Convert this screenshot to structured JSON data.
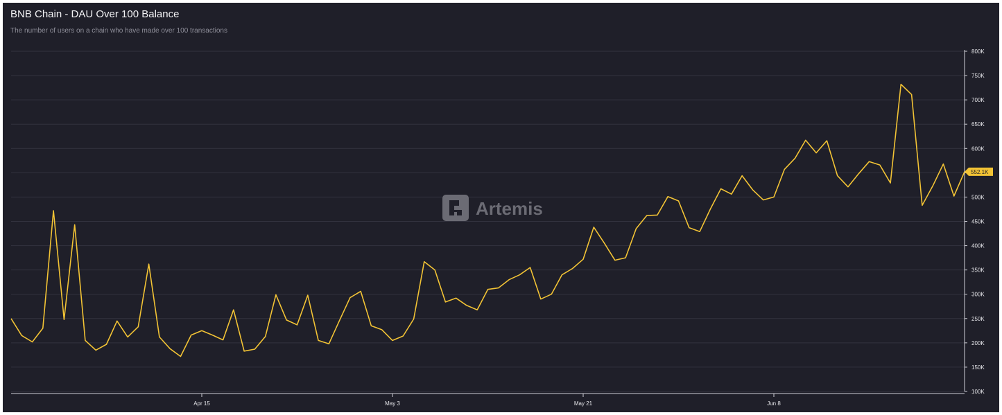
{
  "title": "BNB Chain - DAU Over 100 Balance",
  "subtitle": "The number of users on a chain who have made over 100 transactions",
  "watermark": "Artemis",
  "last_value_label": "552.1K",
  "colors": {
    "background": "#1f1f29",
    "line": "#f2c335",
    "grid": "#33333f",
    "text": "#f2f2f4",
    "muted": "#8e8e99"
  },
  "chart_data": {
    "type": "line",
    "title": "BNB Chain - DAU Over 100 Balance",
    "subtitle": "The number of users on a chain who have made over 100 transactions",
    "xlabel": "",
    "ylabel": "",
    "ylim": [
      100000,
      800000
    ],
    "y_ticks": [
      100000,
      150000,
      200000,
      250000,
      300000,
      350000,
      400000,
      450000,
      500000,
      550000,
      600000,
      650000,
      700000,
      750000,
      800000
    ],
    "y_tick_labels": [
      "100K",
      "150K",
      "200K",
      "250K",
      "300K",
      "350K",
      "400K",
      "450K",
      "500K",
      "550K",
      "600K",
      "650K",
      "700K",
      "750K",
      "800K"
    ],
    "x_ticks": [
      {
        "label": "Apr 15",
        "index": 18
      },
      {
        "label": "May 3",
        "index": 36
      },
      {
        "label": "May 21",
        "index": 54
      },
      {
        "label": "Jun 8",
        "index": 72
      }
    ],
    "grid": true,
    "legend": "none",
    "series": [
      {
        "values": [
          250000,
          215000,
          202000,
          230000,
          472000,
          248000,
          443000,
          205000,
          185000,
          197000,
          245000,
          212000,
          233000,
          362000,
          212000,
          188000,
          172000,
          216000,
          225000,
          216000,
          206000,
          268000,
          183000,
          187000,
          213000,
          299000,
          247000,
          237000,
          298000,
          205000,
          198000,
          246000,
          293000,
          306000,
          235000,
          227000,
          205000,
          214000,
          249000,
          367000,
          350000,
          284000,
          292000,
          277000,
          268000,
          310000,
          313000,
          330000,
          340000,
          355000,
          290000,
          300000,
          340000,
          353000,
          372000,
          438000,
          405000,
          370000,
          375000,
          435000,
          462000,
          463000,
          501000,
          492000,
          437000,
          429000,
          475000,
          517000,
          506000,
          544000,
          515000,
          494000,
          500000,
          557000,
          580000,
          617000,
          591000,
          616000,
          544000,
          521000,
          548000,
          573000,
          566000,
          529000,
          732000,
          711000,
          483000,
          523000,
          568000,
          502000,
          552100
        ]
      }
    ]
  }
}
